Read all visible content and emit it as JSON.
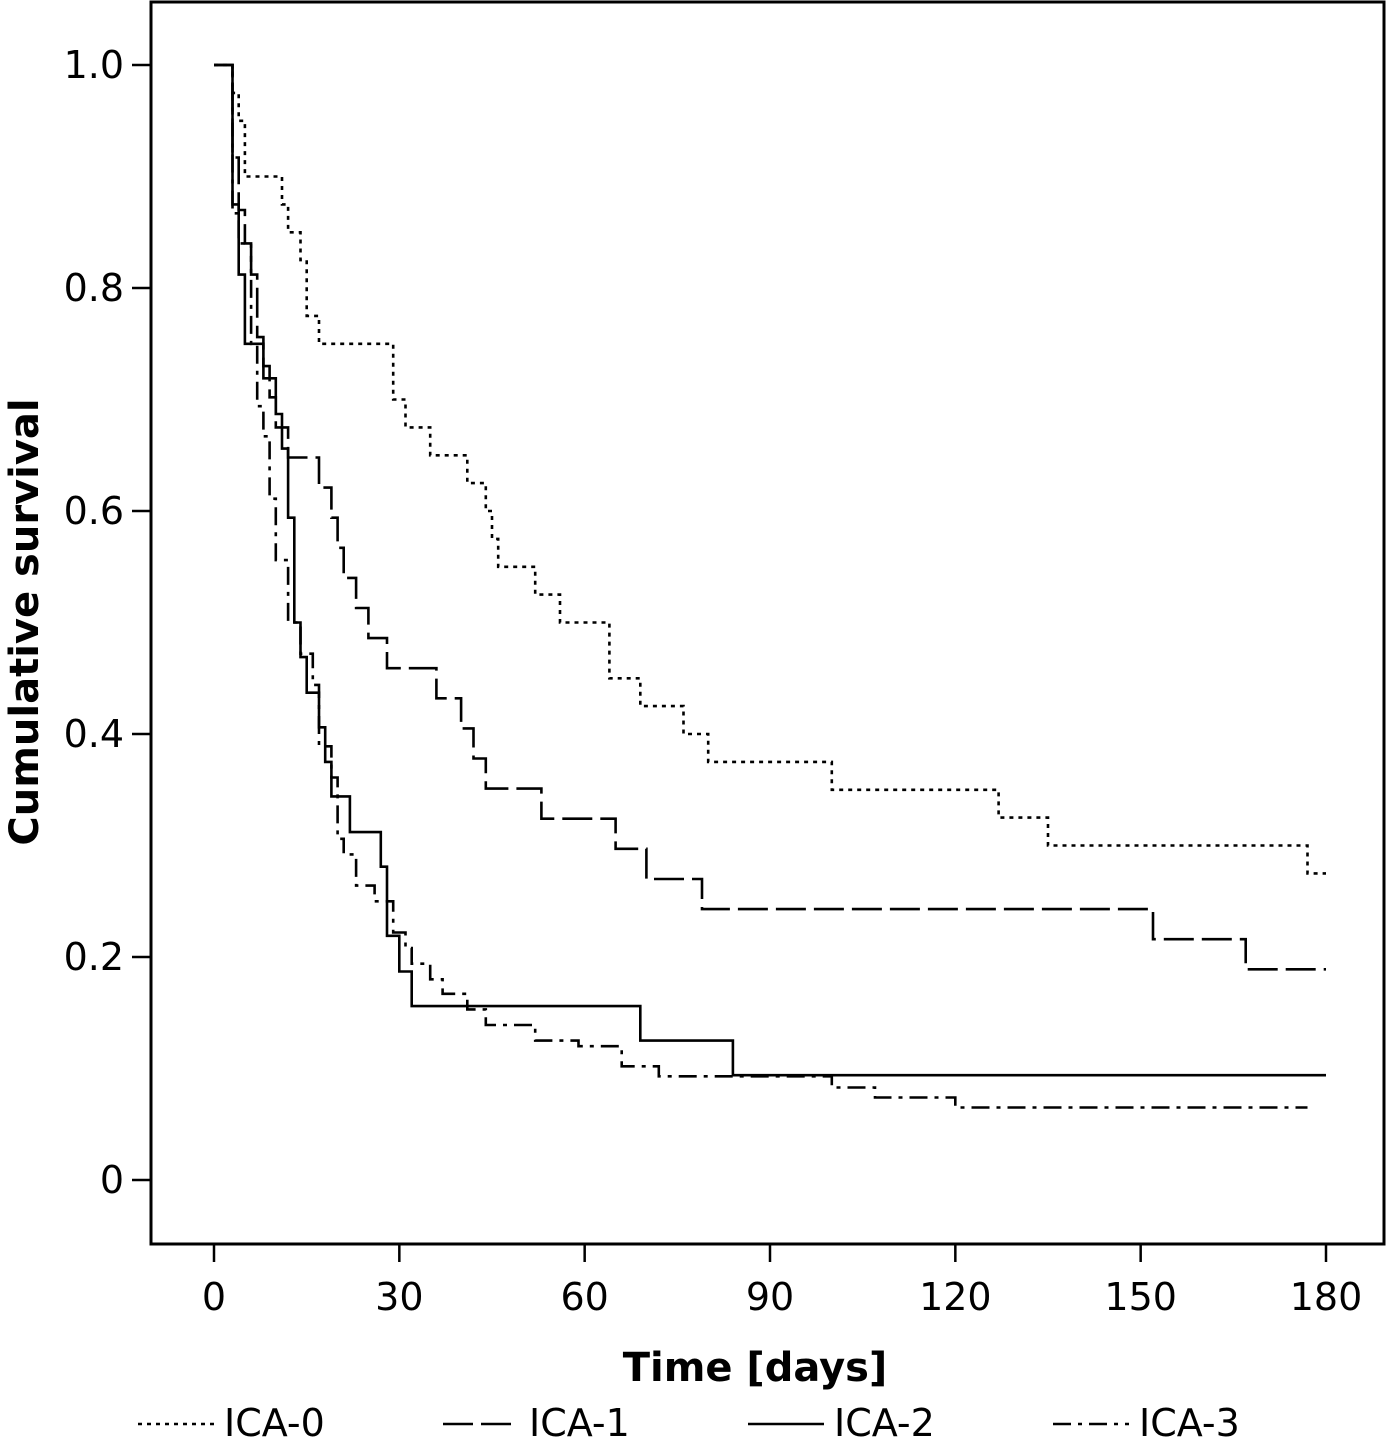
{
  "chart_data": {
    "type": "line",
    "xlabel": "Time [days]",
    "ylabel": "Cumulative survival",
    "xlim": [
      -10,
      190
    ],
    "ylim": [
      -0.11,
      1.1
    ],
    "xticks": [
      0,
      30,
      60,
      90,
      120,
      150,
      180
    ],
    "xtick_labels": [
      "0",
      "30",
      "60",
      "90",
      "120",
      "150",
      "180"
    ],
    "yticks": [
      0,
      0.2,
      0.4,
      0.6,
      0.8,
      1.0
    ],
    "ytick_labels": [
      "0",
      "0.2",
      "0.4",
      "0.6",
      "0.8",
      "1.0"
    ],
    "grid": false,
    "legend_position": "bottom",
    "step": true,
    "series": [
      {
        "name": "ICA-0",
        "dash": "dotted",
        "points": [
          [
            0,
            1.0
          ],
          [
            3,
            1.0
          ],
          [
            3,
            0.975
          ],
          [
            4,
            0.975
          ],
          [
            4,
            0.95
          ],
          [
            5,
            0.95
          ],
          [
            5,
            0.9
          ],
          [
            11,
            0.9
          ],
          [
            11,
            0.875
          ],
          [
            12,
            0.875
          ],
          [
            12,
            0.85
          ],
          [
            14,
            0.85
          ],
          [
            14,
            0.825
          ],
          [
            15,
            0.825
          ],
          [
            15,
            0.775
          ],
          [
            17,
            0.775
          ],
          [
            17,
            0.75
          ],
          [
            29,
            0.75
          ],
          [
            29,
            0.7
          ],
          [
            31,
            0.7
          ],
          [
            31,
            0.675
          ],
          [
            35,
            0.675
          ],
          [
            35,
            0.65
          ],
          [
            41,
            0.65
          ],
          [
            41,
            0.625
          ],
          [
            44,
            0.625
          ],
          [
            44,
            0.6
          ],
          [
            45,
            0.6
          ],
          [
            45,
            0.575
          ],
          [
            46,
            0.575
          ],
          [
            46,
            0.55
          ],
          [
            52,
            0.55
          ],
          [
            52,
            0.525
          ],
          [
            56,
            0.525
          ],
          [
            56,
            0.5
          ],
          [
            64,
            0.5
          ],
          [
            64,
            0.45
          ],
          [
            69,
            0.45
          ],
          [
            69,
            0.425
          ],
          [
            76,
            0.425
          ],
          [
            76,
            0.4
          ],
          [
            80,
            0.4
          ],
          [
            80,
            0.375
          ],
          [
            100,
            0.375
          ],
          [
            100,
            0.35
          ],
          [
            127,
            0.35
          ],
          [
            127,
            0.325
          ],
          [
            135,
            0.325
          ],
          [
            135,
            0.3
          ],
          [
            177,
            0.3
          ],
          [
            177,
            0.275
          ],
          [
            180,
            0.275
          ]
        ]
      },
      {
        "name": "ICA-1",
        "dash": "long-dash",
        "points": [
          [
            0,
            1.0
          ],
          [
            3,
            1.0
          ],
          [
            3,
            0.917
          ],
          [
            4,
            0.917
          ],
          [
            4,
            0.87
          ],
          [
            5,
            0.87
          ],
          [
            5,
            0.84
          ],
          [
            6,
            0.84
          ],
          [
            6,
            0.812
          ],
          [
            7,
            0.812
          ],
          [
            7,
            0.756
          ],
          [
            8,
            0.756
          ],
          [
            8,
            0.73
          ],
          [
            9,
            0.73
          ],
          [
            9,
            0.702
          ],
          [
            10,
            0.702
          ],
          [
            10,
            0.675
          ],
          [
            12,
            0.675
          ],
          [
            12,
            0.648
          ],
          [
            17,
            0.648
          ],
          [
            17,
            0.621
          ],
          [
            19,
            0.621
          ],
          [
            19,
            0.594
          ],
          [
            20,
            0.594
          ],
          [
            20,
            0.567
          ],
          [
            21,
            0.567
          ],
          [
            21,
            0.54
          ],
          [
            23,
            0.54
          ],
          [
            23,
            0.513
          ],
          [
            25,
            0.513
          ],
          [
            25,
            0.486
          ],
          [
            28,
            0.486
          ],
          [
            28,
            0.459
          ],
          [
            36,
            0.459
          ],
          [
            36,
            0.432
          ],
          [
            40,
            0.432
          ],
          [
            40,
            0.405
          ],
          [
            42,
            0.405
          ],
          [
            42,
            0.378
          ],
          [
            44,
            0.378
          ],
          [
            44,
            0.351
          ],
          [
            53,
            0.351
          ],
          [
            53,
            0.324
          ],
          [
            65,
            0.324
          ],
          [
            65,
            0.297
          ],
          [
            70,
            0.297
          ],
          [
            70,
            0.27
          ],
          [
            79,
            0.27
          ],
          [
            79,
            0.243
          ],
          [
            152,
            0.243
          ],
          [
            152,
            0.216
          ],
          [
            167,
            0.216
          ],
          [
            167,
            0.189
          ],
          [
            180,
            0.189
          ]
        ]
      },
      {
        "name": "ICA-2",
        "dash": "solid",
        "points": [
          [
            0,
            1.0
          ],
          [
            3,
            1.0
          ],
          [
            3,
            0.875
          ],
          [
            4,
            0.875
          ],
          [
            4,
            0.812
          ],
          [
            5,
            0.812
          ],
          [
            5,
            0.75
          ],
          [
            8,
            0.75
          ],
          [
            8,
            0.719
          ],
          [
            10,
            0.719
          ],
          [
            10,
            0.687
          ],
          [
            11,
            0.687
          ],
          [
            11,
            0.656
          ],
          [
            12,
            0.656
          ],
          [
            12,
            0.594
          ],
          [
            13,
            0.594
          ],
          [
            13,
            0.5
          ],
          [
            14,
            0.5
          ],
          [
            14,
            0.469
          ],
          [
            15,
            0.469
          ],
          [
            15,
            0.437
          ],
          [
            17,
            0.437
          ],
          [
            17,
            0.406
          ],
          [
            18,
            0.406
          ],
          [
            18,
            0.375
          ],
          [
            19,
            0.375
          ],
          [
            19,
            0.344
          ],
          [
            22,
            0.344
          ],
          [
            22,
            0.312
          ],
          [
            27,
            0.312
          ],
          [
            27,
            0.281
          ],
          [
            28,
            0.281
          ],
          [
            28,
            0.219
          ],
          [
            30,
            0.219
          ],
          [
            30,
            0.187
          ],
          [
            32,
            0.187
          ],
          [
            32,
            0.156
          ],
          [
            69,
            0.156
          ],
          [
            69,
            0.125
          ],
          [
            84,
            0.125
          ],
          [
            84,
            0.094
          ],
          [
            180,
            0.094
          ]
        ]
      },
      {
        "name": "ICA-3",
        "dash": "dash-dot",
        "points": [
          [
            0,
            1.0
          ],
          [
            3,
            1.0
          ],
          [
            3,
            0.867
          ],
          [
            4,
            0.867
          ],
          [
            4,
            0.84
          ],
          [
            6,
            0.84
          ],
          [
            6,
            0.75
          ],
          [
            7,
            0.75
          ],
          [
            7,
            0.694
          ],
          [
            8,
            0.694
          ],
          [
            8,
            0.667
          ],
          [
            9,
            0.667
          ],
          [
            9,
            0.611
          ],
          [
            10,
            0.611
          ],
          [
            10,
            0.556
          ],
          [
            12,
            0.556
          ],
          [
            12,
            0.5
          ],
          [
            14,
            0.5
          ],
          [
            14,
            0.472
          ],
          [
            16,
            0.472
          ],
          [
            16,
            0.444
          ],
          [
            17,
            0.444
          ],
          [
            17,
            0.389
          ],
          [
            19,
            0.389
          ],
          [
            19,
            0.361
          ],
          [
            20,
            0.361
          ],
          [
            20,
            0.306
          ],
          [
            21,
            0.306
          ],
          [
            21,
            0.292
          ],
          [
            23,
            0.292
          ],
          [
            23,
            0.264
          ],
          [
            26,
            0.264
          ],
          [
            26,
            0.25
          ],
          [
            29,
            0.25
          ],
          [
            29,
            0.222
          ],
          [
            31,
            0.222
          ],
          [
            31,
            0.208
          ],
          [
            32,
            0.208
          ],
          [
            32,
            0.194
          ],
          [
            35,
            0.194
          ],
          [
            35,
            0.18
          ],
          [
            37,
            0.18
          ],
          [
            37,
            0.167
          ],
          [
            41,
            0.167
          ],
          [
            41,
            0.153
          ],
          [
            44,
            0.153
          ],
          [
            44,
            0.139
          ],
          [
            52,
            0.139
          ],
          [
            52,
            0.125
          ],
          [
            59,
            0.125
          ],
          [
            59,
            0.12
          ],
          [
            66,
            0.12
          ],
          [
            66,
            0.102
          ],
          [
            72,
            0.102
          ],
          [
            72,
            0.093
          ],
          [
            100,
            0.093
          ],
          [
            100,
            0.083
          ],
          [
            107,
            0.083
          ],
          [
            107,
            0.074
          ],
          [
            120,
            0.074
          ],
          [
            120,
            0.065
          ],
          [
            177,
            0.065
          ]
        ]
      }
    ]
  }
}
